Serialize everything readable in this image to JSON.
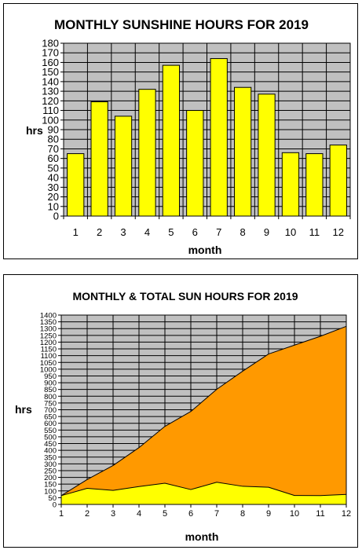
{
  "chart_data": [
    {
      "type": "bar",
      "title": "MONTHLY SUNSHINE HOURS FOR 2019",
      "xlabel": "month",
      "ylabel": "hrs",
      "categories": [
        "1",
        "2",
        "3",
        "4",
        "5",
        "6",
        "7",
        "8",
        "9",
        "10",
        "11",
        "12"
      ],
      "values": [
        65,
        119,
        104,
        132,
        157,
        110,
        164,
        134,
        127,
        66,
        65,
        74
      ],
      "ylim": [
        0,
        180
      ],
      "ytick_step": 10,
      "grid": true,
      "colors": {
        "bar": "#ffff00",
        "plot_bg": "#c0c0c0",
        "grid": "#000000"
      }
    },
    {
      "type": "area",
      "title": "MONTHLY & TOTAL SUN HOURS FOR 2019",
      "xlabel": "month",
      "ylabel": "hrs",
      "categories": [
        "1",
        "2",
        "3",
        "4",
        "5",
        "6",
        "7",
        "8",
        "9",
        "10",
        "11",
        "12"
      ],
      "series": [
        {
          "values": [
            65,
            119,
            104,
            132,
            157,
            110,
            164,
            134,
            127,
            66,
            65,
            74
          ],
          "color": "#ffff00"
        },
        {
          "values": [
            65,
            184,
            288,
            420,
            577,
            687,
            851,
            985,
            1112,
            1178,
            1243,
            1317
          ],
          "color": "#ff9900"
        }
      ],
      "ylim": [
        0,
        1400
      ],
      "ytick_step": 50,
      "grid": true,
      "colors": {
        "plot_bg": "#c0c0c0",
        "grid": "#000000"
      }
    }
  ]
}
